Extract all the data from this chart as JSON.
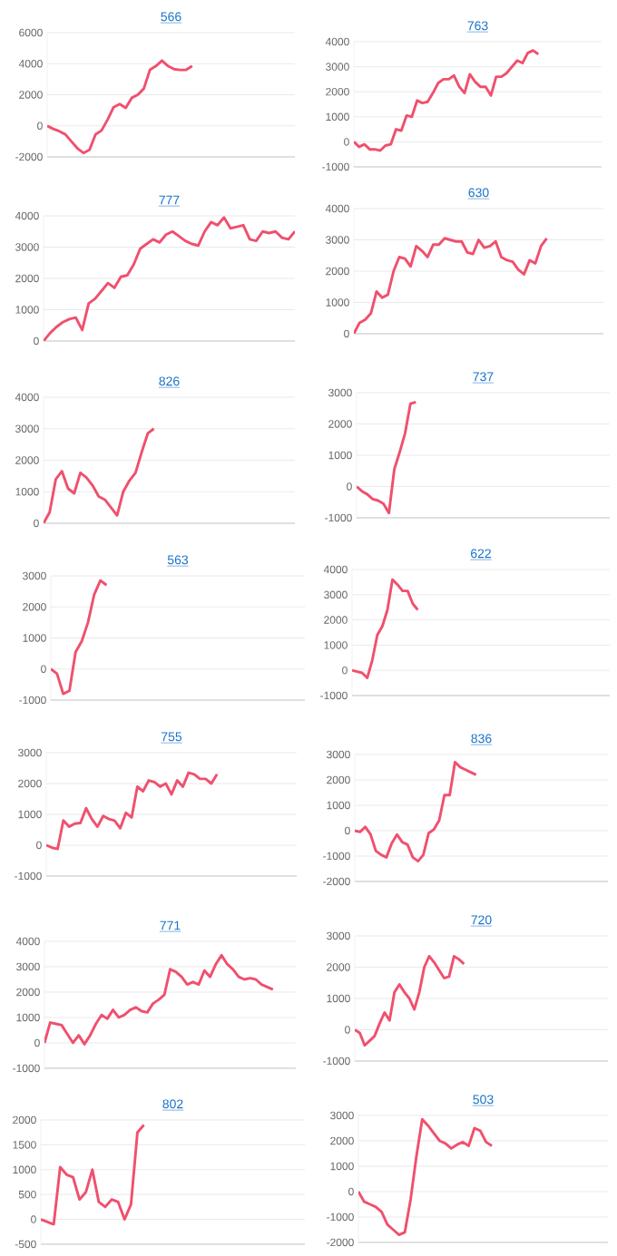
{
  "chart_data": [
    {
      "type": "line",
      "title": "566",
      "color": "#f0506e",
      "grid": "y",
      "tick_labels": "y",
      "ylim": [
        -2000,
        6000
      ],
      "yticks": [
        -2000,
        0,
        2000,
        4000,
        6000
      ],
      "categories": [
        null,
        null,
        null,
        null,
        null,
        null,
        null,
        null,
        null,
        null,
        null,
        null,
        null,
        null,
        null,
        null,
        null,
        null,
        null,
        null,
        null,
        null,
        null,
        null,
        null,
        null,
        null,
        null,
        null,
        null,
        null,
        null,
        null,
        null,
        null,
        null,
        null,
        null,
        null,
        null,
        null,
        null
      ],
      "values": [
        0,
        -200,
        -350,
        -550,
        -1000,
        -1450,
        -1750,
        -1550,
        -550,
        -300,
        400,
        1200,
        1400,
        1150,
        1800,
        2000,
        2400,
        3600,
        3850,
        4200,
        3850,
        3650,
        3600,
        3600,
        3850,
        null,
        null,
        null,
        null,
        null,
        null,
        null,
        null,
        null,
        null,
        null,
        null,
        null,
        null,
        null,
        null,
        null
      ]
    },
    {
      "type": "line",
      "title": "763",
      "color": "#f0506e",
      "grid": "y",
      "tick_labels": "y",
      "ylim": [
        -1000,
        4000
      ],
      "yticks": [
        -1000,
        0,
        1000,
        2000,
        3000,
        4000
      ],
      "categories": [
        null,
        null,
        null,
        null,
        null,
        null,
        null,
        null,
        null,
        null,
        null,
        null,
        null,
        null,
        null,
        null,
        null,
        null,
        null,
        null,
        null,
        null,
        null,
        null,
        null,
        null,
        null,
        null,
        null,
        null,
        null,
        null,
        null,
        null,
        null,
        null,
        null,
        null,
        null,
        null,
        null,
        null,
        null,
        null,
        null,
        null,
        null,
        null
      ],
      "values": [
        0,
        -200,
        -100,
        -300,
        -300,
        -350,
        -150,
        -100,
        500,
        450,
        1050,
        1000,
        1650,
        1550,
        1600,
        1950,
        2350,
        2500,
        2500,
        2650,
        2200,
        1950,
        2700,
        2400,
        2200,
        2200,
        1850,
        2600,
        2600,
        2750,
        3000,
        3250,
        3150,
        3550,
        3650,
        3500,
        null,
        null,
        null,
        null,
        null,
        null,
        null,
        null,
        null,
        null,
        null,
        null
      ]
    },
    {
      "type": "line",
      "title": "777",
      "color": "#f0506e",
      "grid": "y",
      "tick_labels": "y",
      "ylim": [
        0,
        4000
      ],
      "yticks": [
        0,
        1000,
        2000,
        3000,
        4000
      ],
      "categories": [
        null,
        null,
        null,
        null,
        null,
        null,
        null,
        null,
        null,
        null,
        null,
        null,
        null,
        null,
        null,
        null,
        null,
        null,
        null,
        null,
        null,
        null,
        null,
        null,
        null,
        null,
        null,
        null,
        null,
        null,
        null,
        null,
        null,
        null,
        null,
        null,
        null,
        null,
        null,
        null
      ],
      "values": [
        0,
        250,
        450,
        600,
        700,
        750,
        350,
        1200,
        1350,
        1600,
        1850,
        1700,
        2050,
        2100,
        2450,
        2950,
        3100,
        3250,
        3150,
        3400,
        3500,
        3350,
        3200,
        3100,
        3050,
        3500,
        3800,
        3700,
        3950,
        3600,
        3650,
        3700,
        3250,
        3200,
        3500,
        3450,
        3500,
        3300,
        3250,
        3500
      ]
    },
    {
      "type": "line",
      "title": "630",
      "color": "#f0506e",
      "grid": "y",
      "tick_labels": "y",
      "ylim": [
        0,
        4000
      ],
      "yticks": [
        0,
        1000,
        2000,
        3000,
        4000
      ],
      "categories": [
        null,
        null,
        null,
        null,
        null,
        null,
        null,
        null,
        null,
        null,
        null,
        null,
        null,
        null,
        null,
        null,
        null,
        null,
        null,
        null,
        null,
        null,
        null,
        null,
        null,
        null,
        null,
        null,
        null,
        null,
        null,
        null,
        null,
        null,
        null,
        null,
        null,
        null,
        null,
        null,
        null,
        null,
        null,
        null,
        null
      ],
      "values": [
        0,
        350,
        450,
        650,
        1350,
        1150,
        1250,
        2000,
        2450,
        2400,
        2150,
        2800,
        2650,
        2450,
        2850,
        2850,
        3050,
        3000,
        2950,
        2950,
        2600,
        2550,
        3000,
        2750,
        2800,
        2950,
        2450,
        2350,
        2300,
        2050,
        1900,
        2350,
        2250,
        2800,
        3050,
        null,
        null,
        null,
        null,
        null,
        null,
        null,
        null,
        null,
        null
      ]
    },
    {
      "type": "line",
      "title": "826",
      "color": "#f0506e",
      "grid": "y",
      "tick_labels": "y",
      "ylim": [
        0,
        4000
      ],
      "yticks": [
        0,
        1000,
        2000,
        3000,
        4000
      ],
      "categories": [
        null,
        null,
        null,
        null,
        null,
        null,
        null,
        null,
        null,
        null,
        null,
        null,
        null,
        null,
        null,
        null,
        null,
        null,
        null,
        null,
        null,
        null,
        null,
        null,
        null,
        null,
        null,
        null,
        null,
        null,
        null,
        null,
        null,
        null,
        null,
        null,
        null,
        null,
        null,
        null,
        null,
        null
      ],
      "values": [
        0,
        350,
        1400,
        1650,
        1100,
        950,
        1600,
        1450,
        1200,
        850,
        750,
        500,
        250,
        1000,
        1350,
        1600,
        2250,
        2850,
        3000,
        null,
        null,
        null,
        null,
        null,
        null,
        null,
        null,
        null,
        null,
        null,
        null,
        null,
        null,
        null,
        null,
        null,
        null,
        null,
        null,
        null,
        null,
        null
      ]
    },
    {
      "type": "line",
      "title": "737",
      "color": "#f0506e",
      "grid": "y",
      "tick_labels": "y",
      "ylim": [
        -1000,
        3000
      ],
      "yticks": [
        -1000,
        0,
        1000,
        2000,
        3000
      ],
      "categories": [
        null,
        null,
        null,
        null,
        null,
        null,
        null,
        null,
        null,
        null,
        null,
        null,
        null,
        null,
        null,
        null,
        null,
        null,
        null,
        null,
        null,
        null,
        null,
        null,
        null,
        null,
        null,
        null,
        null,
        null,
        null,
        null,
        null,
        null,
        null,
        null,
        null,
        null,
        null,
        null,
        null,
        null,
        null,
        null,
        null,
        null,
        null,
        null
      ],
      "values": [
        0,
        -150,
        -250,
        -400,
        -450,
        -550,
        -850,
        550,
        1100,
        1700,
        2650,
        2700,
        null,
        null,
        null,
        null,
        null,
        null,
        null,
        null,
        null,
        null,
        null,
        null,
        null,
        null,
        null,
        null,
        null,
        null,
        null,
        null,
        null,
        null,
        null,
        null,
        null,
        null,
        null,
        null,
        null,
        null,
        null,
        null,
        null,
        null,
        null,
        null
      ]
    },
    {
      "type": "line",
      "title": "563",
      "color": "#f0506e",
      "grid": "y",
      "tick_labels": "y",
      "ylim": [
        -1000,
        3000
      ],
      "yticks": [
        -1000,
        0,
        1000,
        2000,
        3000
      ],
      "categories": [
        null,
        null,
        null,
        null,
        null,
        null,
        null,
        null,
        null,
        null,
        null,
        null,
        null,
        null,
        null,
        null,
        null,
        null,
        null,
        null,
        null,
        null,
        null,
        null,
        null,
        null,
        null,
        null,
        null,
        null,
        null,
        null,
        null,
        null,
        null,
        null,
        null,
        null,
        null,
        null,
        null,
        null
      ],
      "values": [
        0,
        -150,
        -800,
        -700,
        550,
        900,
        1500,
        2400,
        2850,
        2700,
        null,
        null,
        null,
        null,
        null,
        null,
        null,
        null,
        null,
        null,
        null,
        null,
        null,
        null,
        null,
        null,
        null,
        null,
        null,
        null,
        null,
        null,
        null,
        null,
        null,
        null,
        null,
        null,
        null,
        null,
        null,
        null
      ]
    },
    {
      "type": "line",
      "title": "622",
      "color": "#f0506e",
      "grid": "y",
      "tick_labels": "y",
      "ylim": [
        -1000,
        4000
      ],
      "yticks": [
        -1000,
        0,
        1000,
        2000,
        3000,
        4000
      ],
      "categories": [
        null,
        null,
        null,
        null,
        null,
        null,
        null,
        null,
        null,
        null,
        null,
        null,
        null,
        null,
        null,
        null,
        null,
        null,
        null,
        null,
        null,
        null,
        null,
        null,
        null,
        null,
        null,
        null,
        null,
        null,
        null,
        null,
        null,
        null,
        null,
        null,
        null,
        null,
        null,
        null,
        null,
        null,
        null,
        null,
        null,
        null,
        null,
        null,
        null,
        null,
        null,
        null
      ],
      "values": [
        0,
        -50,
        -100,
        -300,
        400,
        1400,
        1750,
        2400,
        3600,
        3400,
        3150,
        3150,
        2650,
        2400,
        null,
        null,
        null,
        null,
        null,
        null,
        null,
        null,
        null,
        null,
        null,
        null,
        null,
        null,
        null,
        null,
        null,
        null,
        null,
        null,
        null,
        null,
        null,
        null,
        null,
        null,
        null,
        null,
        null,
        null,
        null,
        null,
        null,
        null,
        null,
        null,
        null,
        null
      ]
    },
    {
      "type": "line",
      "title": "755",
      "color": "#f0506e",
      "grid": "y",
      "tick_labels": "y",
      "ylim": [
        -1000,
        3000
      ],
      "yticks": [
        -1000,
        0,
        1000,
        2000,
        3000
      ],
      "categories": [
        null,
        null,
        null,
        null,
        null,
        null,
        null,
        null,
        null,
        null,
        null,
        null,
        null,
        null,
        null,
        null,
        null,
        null,
        null,
        null,
        null,
        null,
        null,
        null,
        null,
        null,
        null,
        null,
        null,
        null,
        null,
        null,
        null,
        null,
        null,
        null,
        null,
        null,
        null,
        null,
        null,
        null,
        null,
        null,
        null
      ],
      "values": [
        0,
        -80,
        -120,
        800,
        600,
        700,
        720,
        1200,
        850,
        600,
        950,
        850,
        800,
        550,
        1050,
        900,
        1900,
        1750,
        2100,
        2050,
        1900,
        2000,
        1650,
        2100,
        1900,
        2350,
        2300,
        2150,
        2150,
        2000,
        2300,
        null,
        null,
        null,
        null,
        null,
        null,
        null,
        null,
        null,
        null,
        null,
        null,
        null,
        null
      ]
    },
    {
      "type": "line",
      "title": "836",
      "color": "#f0506e",
      "grid": "y",
      "tick_labels": "y",
      "ylim": [
        -2000,
        3000
      ],
      "yticks": [
        -2000,
        -1000,
        0,
        1000,
        2000,
        3000
      ],
      "categories": [
        null,
        null,
        null,
        null,
        null,
        null,
        null,
        null,
        null,
        null,
        null,
        null,
        null,
        null,
        null,
        null,
        null,
        null,
        null,
        null,
        null,
        null,
        null,
        null,
        null,
        null,
        null,
        null,
        null,
        null,
        null,
        null,
        null,
        null,
        null,
        null,
        null,
        null,
        null,
        null,
        null,
        null,
        null,
        null,
        null,
        null,
        null,
        null,
        null
      ],
      "values": [
        0,
        -50,
        150,
        -150,
        -800,
        -950,
        -1050,
        -500,
        -150,
        -450,
        -550,
        -1050,
        -1200,
        -950,
        -100,
        50,
        400,
        1400,
        1400,
        2700,
        2500,
        2400,
        2300,
        2200,
        null,
        null,
        null,
        null,
        null,
        null,
        null,
        null,
        null,
        null,
        null,
        null,
        null,
        null,
        null,
        null,
        null,
        null,
        null,
        null,
        null,
        null,
        null,
        null,
        null
      ]
    },
    {
      "type": "line",
      "title": "771",
      "color": "#f0506e",
      "grid": "y",
      "tick_labels": "y",
      "ylim": [
        -1000,
        4000
      ],
      "yticks": [
        -1000,
        0,
        1000,
        2000,
        3000,
        4000
      ],
      "categories": [
        null,
        null,
        null,
        null,
        null,
        null,
        null,
        null,
        null,
        null,
        null,
        null,
        null,
        null,
        null,
        null,
        null,
        null,
        null,
        null,
        null,
        null,
        null,
        null,
        null,
        null,
        null,
        null,
        null,
        null,
        null,
        null,
        null,
        null,
        null,
        null,
        null,
        null,
        null,
        null,
        null,
        null,
        null,
        null,
        null
      ],
      "values": [
        0,
        800,
        750,
        700,
        350,
        0,
        300,
        -50,
        300,
        750,
        1100,
        950,
        1300,
        1000,
        1100,
        1300,
        1400,
        1250,
        1200,
        1550,
        1700,
        1900,
        2900,
        2800,
        2600,
        2300,
        2400,
        2300,
        2850,
        2600,
        3100,
        3450,
        3100,
        2900,
        2600,
        2500,
        2550,
        2500,
        2300,
        2200,
        2100,
        null,
        null,
        null,
        null
      ]
    },
    {
      "type": "line",
      "title": "720",
      "color": "#f0506e",
      "grid": "y",
      "tick_labels": "y",
      "ylim": [
        -1000,
        3000
      ],
      "yticks": [
        -1000,
        0,
        1000,
        2000,
        3000
      ],
      "categories": [
        null,
        null,
        null,
        null,
        null,
        null,
        null,
        null,
        null,
        null,
        null,
        null,
        null,
        null,
        null,
        null,
        null,
        null,
        null,
        null,
        null,
        null,
        null,
        null,
        null,
        null,
        null,
        null,
        null,
        null,
        null,
        null,
        null,
        null,
        null,
        null,
        null,
        null,
        null,
        null,
        null,
        null,
        null,
        null,
        null,
        null,
        null,
        null,
        null,
        null,
        null,
        null
      ],
      "values": [
        0,
        -100,
        -500,
        -350,
        -200,
        200,
        550,
        300,
        1200,
        1450,
        1200,
        1000,
        650,
        1200,
        2000,
        2350,
        2150,
        1900,
        1650,
        1700,
        2350,
        2250,
        2100,
        null,
        null,
        null,
        null,
        null,
        null,
        null,
        null,
        null,
        null,
        null,
        null,
        null,
        null,
        null,
        null,
        null,
        null,
        null,
        null,
        null,
        null,
        null,
        null,
        null,
        null,
        null,
        null,
        null
      ]
    },
    {
      "type": "line",
      "title": "802",
      "color": "#f0506e",
      "grid": "y",
      "tick_labels": "y",
      "ylim": [
        -500,
        2000
      ],
      "yticks": [
        -500,
        0,
        500,
        1000,
        1500,
        2000
      ],
      "categories": [
        null,
        null,
        null,
        null,
        null,
        null,
        null,
        null,
        null,
        null,
        null,
        null,
        null,
        null,
        null,
        null,
        null,
        null,
        null,
        null,
        null,
        null,
        null,
        null,
        null,
        null,
        null,
        null,
        null,
        null,
        null,
        null,
        null,
        null,
        null,
        null,
        null,
        null,
        null,
        null,
        null,
        null
      ],
      "values": [
        0,
        -50,
        -100,
        1050,
        900,
        850,
        400,
        550,
        1000,
        350,
        250,
        400,
        350,
        0,
        300,
        1750,
        1900,
        null,
        null,
        null,
        null,
        null,
        null,
        null,
        null,
        null,
        null,
        null,
        null,
        null,
        null,
        null,
        null,
        null,
        null,
        null,
        null,
        null,
        null,
        null,
        null,
        null
      ]
    },
    {
      "type": "line",
      "title": "503",
      "color": "#f0506e",
      "grid": "y",
      "tick_labels": "y",
      "ylim": [
        -2000,
        3000
      ],
      "yticks": [
        -2000,
        -1000,
        0,
        1000,
        2000,
        3000
      ],
      "categories": [
        null,
        null,
        null,
        null,
        null,
        null,
        null,
        null,
        null,
        null,
        null,
        null,
        null,
        null,
        null,
        null,
        null,
        null,
        null,
        null,
        null,
        null,
        null,
        null,
        null,
        null,
        null,
        null,
        null,
        null,
        null,
        null,
        null,
        null,
        null,
        null,
        null,
        null,
        null,
        null,
        null,
        null,
        null,
        null
      ],
      "values": [
        0,
        -400,
        -500,
        -600,
        -800,
        -1300,
        -1500,
        -1700,
        -1600,
        -300,
        1400,
        2850,
        2600,
        2300,
        2000,
        1900,
        1700,
        1850,
        1950,
        1800,
        2500,
        2400,
        1950,
        1800,
        null,
        null,
        null,
        null,
        null,
        null,
        null,
        null,
        null,
        null,
        null,
        null,
        null,
        null,
        null,
        null,
        null,
        null,
        null,
        null
      ]
    }
  ]
}
